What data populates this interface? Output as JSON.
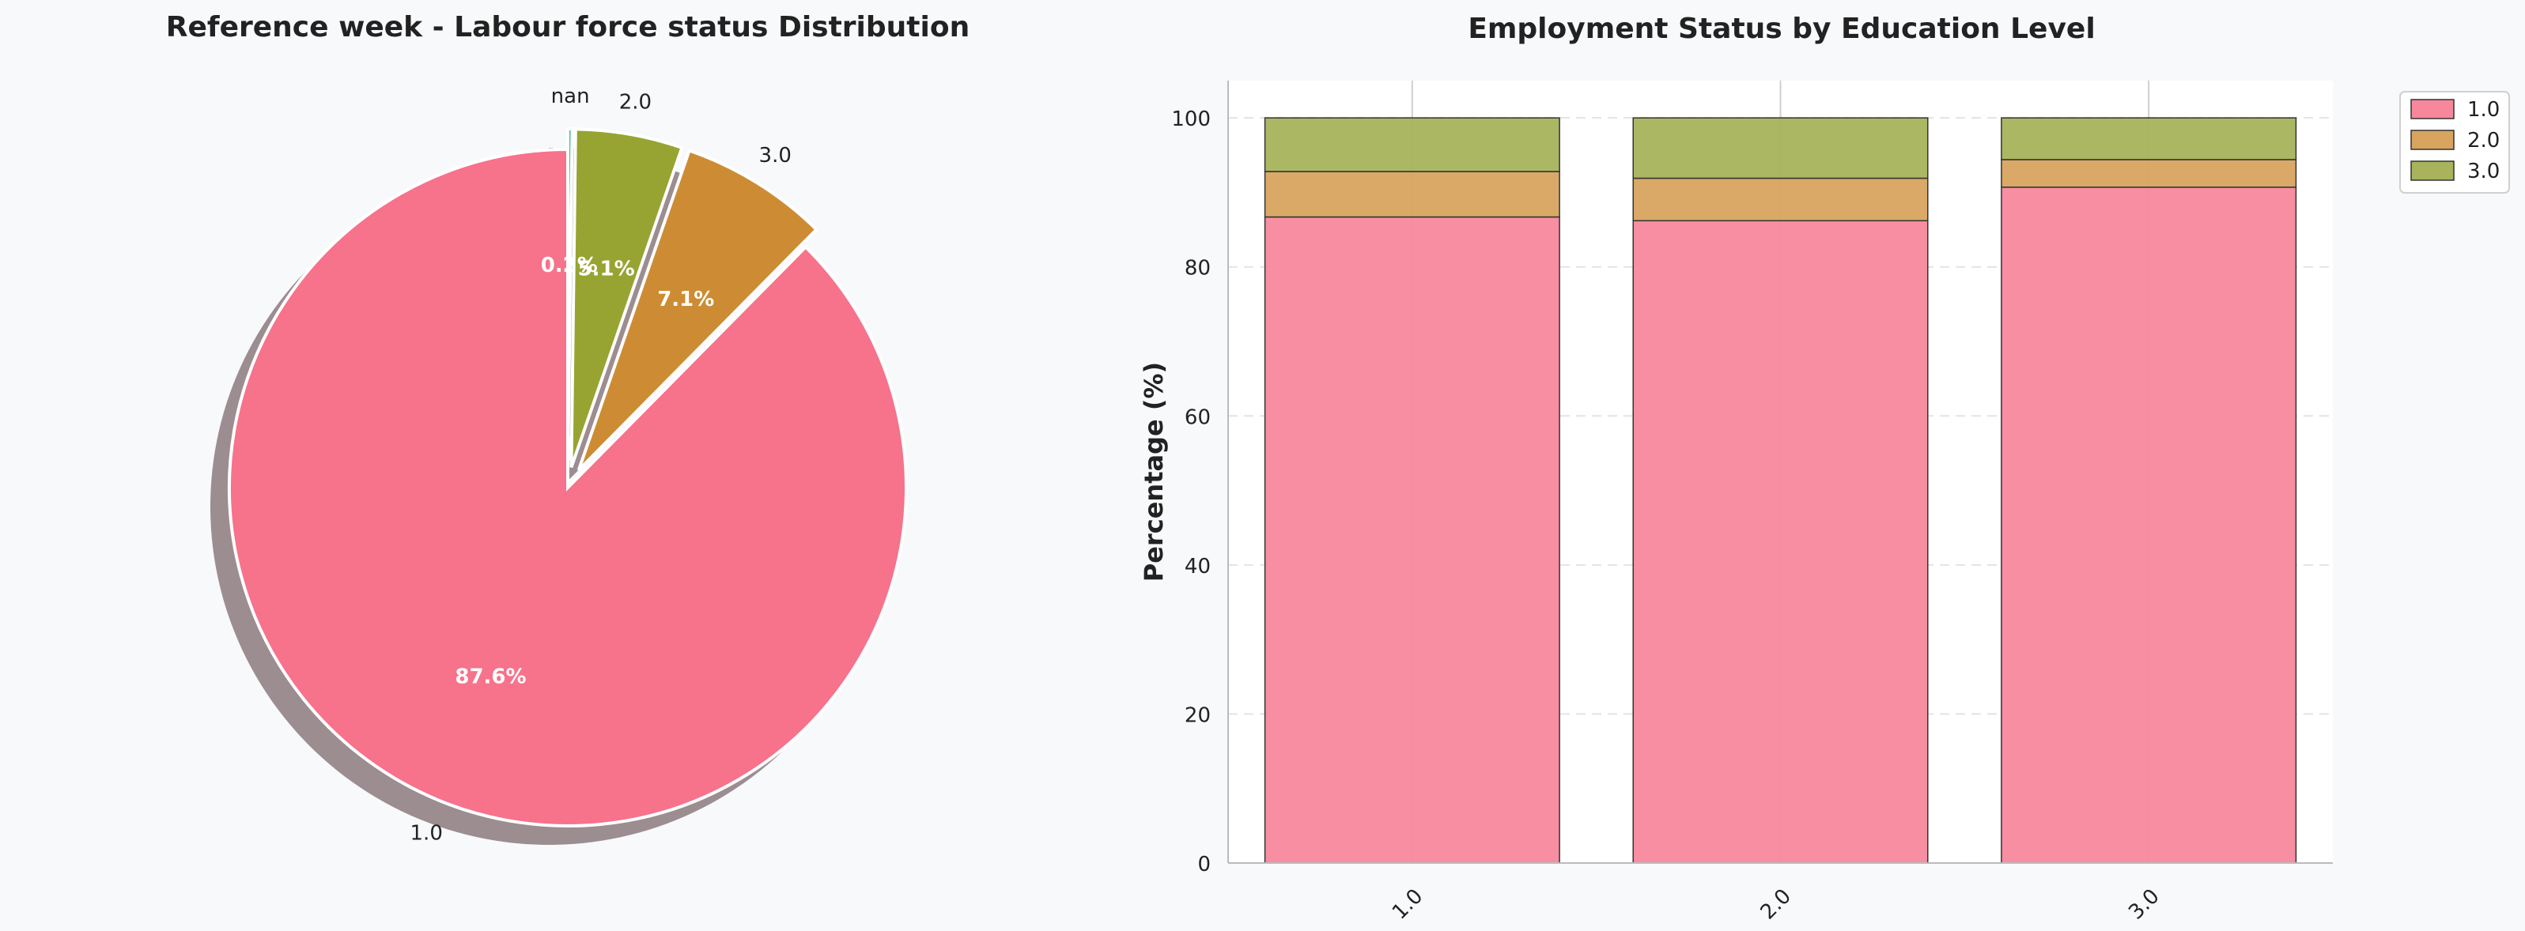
{
  "chart_data": [
    {
      "type": "pie",
      "title": "Reference week - Labour force status Distribution",
      "slices": [
        {
          "label": "1.0",
          "pct_label": "87.6%",
          "value": 87.6,
          "color": "#f7728b"
        },
        {
          "label": "3.0",
          "pct_label": "7.1%",
          "value": 7.1,
          "color": "#cd8c33"
        },
        {
          "label": "2.0",
          "pct_label": "5.1%",
          "value": 5.1,
          "color": "#97a431"
        },
        {
          "label": "nan",
          "pct_label": "0.2%",
          "value": 0.2,
          "color": "#36ac70"
        }
      ],
      "start_angle_deg": 90,
      "counterclockwise": true,
      "shadow": true
    },
    {
      "type": "bar",
      "stacked": true,
      "title": "Employment Status by Education Level",
      "xlabel": "",
      "ylabel": "Percentage (%)",
      "categories": [
        "1.0",
        "2.0",
        "3.0"
      ],
      "ylim": [
        0,
        105
      ],
      "yticks": [
        0,
        20,
        40,
        60,
        80,
        100
      ],
      "series": [
        {
          "name": "1.0",
          "values": [
            86.7,
            86.2,
            90.7
          ],
          "color": "#f7889c"
        },
        {
          "name": "2.0",
          "values": [
            6.1,
            5.7,
            3.7
          ],
          "color": "#d8a45f"
        },
        {
          "name": "3.0",
          "values": [
            7.2,
            8.1,
            5.6
          ],
          "color": "#a8b35c"
        }
      ],
      "legend_position": "upper-right-outside",
      "grid": true
    }
  ]
}
